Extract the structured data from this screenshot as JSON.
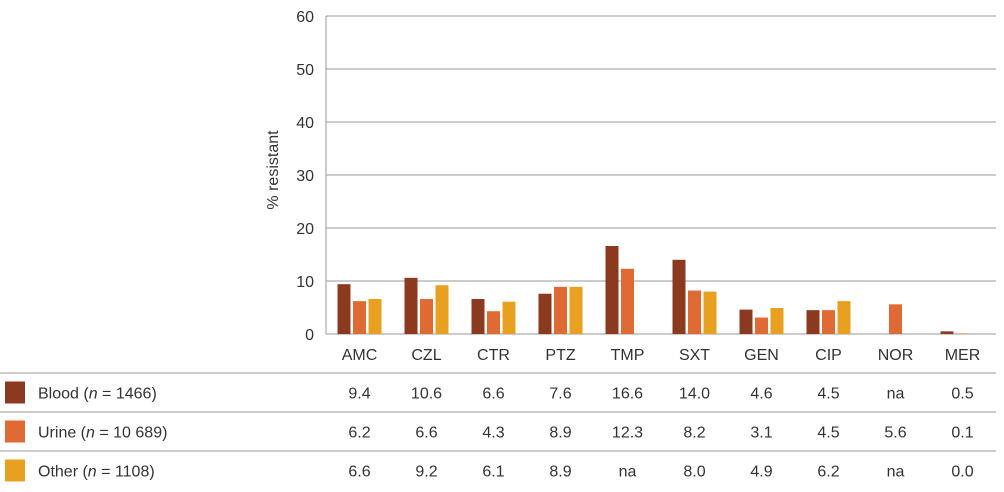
{
  "chart_data": {
    "type": "bar",
    "ylabel": "% resistant",
    "ylim": [
      0,
      60
    ],
    "yticks": [
      0,
      10,
      20,
      30,
      40,
      50,
      60
    ],
    "grid": true,
    "categories": [
      "AMC",
      "CZL",
      "CTR",
      "PTZ",
      "TMP",
      "SXT",
      "GEN",
      "CIP",
      "NOR",
      "MER"
    ],
    "series": [
      {
        "name_prefix": "Blood (",
        "name_n": "n",
        "name_suffix": " = 1466)",
        "color": "#8b3a1f",
        "values": [
          9.4,
          10.6,
          6.6,
          7.6,
          16.6,
          14.0,
          4.6,
          4.5,
          null,
          0.5
        ],
        "labels": [
          "9.4",
          "10.6",
          "6.6",
          "7.6",
          "16.6",
          "14.0",
          "4.6",
          "4.5",
          "na",
          "0.5"
        ]
      },
      {
        "name_prefix": "Urine (",
        "name_n": "n",
        "name_suffix": " = 10 689)",
        "color": "#e06a33",
        "values": [
          6.2,
          6.6,
          4.3,
          8.9,
          12.3,
          8.2,
          3.1,
          4.5,
          5.6,
          0.1
        ],
        "labels": [
          "6.2",
          "6.6",
          "4.3",
          "8.9",
          "12.3",
          "8.2",
          "3.1",
          "4.5",
          "5.6",
          "0.1"
        ]
      },
      {
        "name_prefix": "Other (",
        "name_n": "n",
        "name_suffix": " = 1108)",
        "color": "#e8a020",
        "values": [
          6.6,
          9.2,
          6.1,
          8.9,
          null,
          8.0,
          4.9,
          6.2,
          null,
          0.0
        ],
        "labels": [
          "6.6",
          "9.2",
          "6.1",
          "8.9",
          "na",
          "8.0",
          "4.9",
          "6.2",
          "na",
          "0.0"
        ]
      }
    ]
  }
}
